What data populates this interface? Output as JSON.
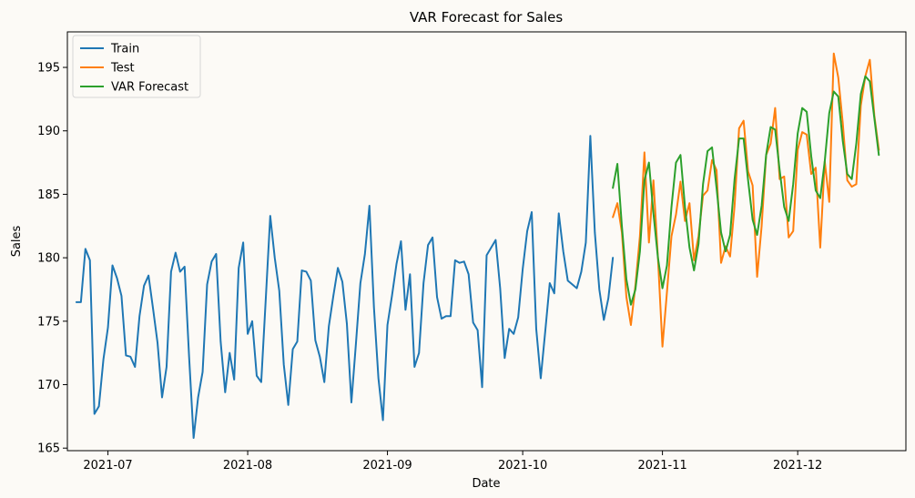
{
  "chart_data": {
    "type": "line",
    "title": "VAR Forecast for Sales",
    "xlabel": "Date",
    "ylabel": "Sales",
    "xlim": [
      "2021-06-22",
      "2021-12-25"
    ],
    "ylim": [
      164.8,
      197.8
    ],
    "x_ticks": [
      "2021-07-01",
      "2021-08-01",
      "2021-09-01",
      "2021-10-01",
      "2021-11-01",
      "2021-12-01"
    ],
    "x_tick_labels": [
      "2021-07",
      "2021-08",
      "2021-09",
      "2021-10",
      "2021-11",
      "2021-12"
    ],
    "y_ticks": [
      165,
      170,
      175,
      180,
      185,
      190,
      195
    ],
    "grid": false,
    "legend": "top-left",
    "series": [
      {
        "name": "Train",
        "color": "#1f77b4",
        "start": "2021-06-24",
        "values": [
          176.5,
          176.5,
          180.7,
          179.8,
          167.7,
          168.3,
          172.0,
          174.5,
          179.4,
          178.4,
          177.0,
          172.3,
          172.2,
          171.4,
          175.4,
          177.8,
          178.6,
          176.0,
          173.3,
          169.0,
          171.4,
          178.9,
          180.4,
          178.9,
          179.3,
          172.2,
          165.8,
          169.0,
          171.0,
          177.9,
          179.7,
          180.3,
          173.4,
          169.4,
          172.5,
          170.4,
          179.2,
          181.2,
          174.0,
          175.0,
          170.7,
          170.2,
          176.7,
          183.3,
          180.0,
          177.4,
          171.6,
          168.4,
          172.8,
          173.4,
          179.0,
          178.9,
          178.2,
          173.5,
          172.2,
          170.2,
          174.6,
          177.0,
          179.2,
          178.1,
          174.8,
          168.6,
          173.2,
          178.0,
          180.3,
          184.1,
          176.1,
          170.5,
          167.2,
          174.7,
          177.0,
          179.5,
          181.3,
          175.9,
          178.7,
          171.4,
          172.5,
          178.0,
          181.0,
          181.6,
          176.9,
          175.2,
          175.4,
          175.4,
          179.8,
          179.6,
          179.7,
          178.7,
          174.9,
          174.3,
          169.8,
          180.2,
          180.8,
          181.4,
          177.6,
          172.1,
          174.4,
          174.0,
          175.3,
          179.1,
          182.1,
          183.6,
          174.4,
          170.5,
          174.2,
          178.0,
          177.2,
          183.5,
          180.5,
          178.2,
          177.9,
          177.6,
          178.9,
          181.2,
          189.6,
          182.0,
          177.5,
          175.1,
          176.8,
          180.0
        ]
      },
      {
        "name": "Test",
        "color": "#ff7f0e",
        "start": "2021-10-21",
        "values": [
          183.2,
          184.3,
          182.0,
          176.9,
          174.7,
          177.8,
          181.7,
          188.3,
          181.2,
          186.1,
          180.0,
          173.0,
          177.3,
          181.7,
          183.4,
          186.0,
          182.9,
          184.3,
          179.8,
          181.7,
          184.9,
          185.3,
          187.7,
          186.9,
          179.6,
          180.9,
          180.1,
          184.1,
          190.2,
          190.8,
          186.8,
          185.7,
          178.5,
          182.5,
          188.1,
          189.0,
          191.8,
          186.2,
          186.4,
          181.6,
          182.1,
          188.5,
          189.9,
          189.7,
          186.6,
          187.1,
          180.8,
          187.6,
          184.4,
          196.1,
          194.2,
          190.6,
          186.1,
          185.6,
          185.8,
          192.0,
          194.3,
          195.6,
          191.2,
          188.5
        ]
      },
      {
        "name": "VAR Forecast",
        "color": "#2ca02c",
        "start": "2021-10-21",
        "values": [
          185.5,
          187.4,
          182.5,
          178.3,
          176.3,
          177.5,
          180.5,
          186.1,
          187.5,
          183.5,
          180.0,
          177.6,
          179.4,
          184.0,
          187.5,
          188.1,
          184.0,
          180.8,
          179.0,
          181.1,
          185.8,
          188.4,
          188.7,
          185.5,
          182.0,
          180.5,
          181.8,
          186.2,
          189.4,
          189.4,
          186.1,
          183.0,
          181.8,
          184.1,
          188.1,
          190.3,
          190.1,
          186.9,
          184.0,
          182.9,
          185.8,
          189.8,
          191.8,
          191.5,
          188.0,
          185.3,
          184.7,
          187.6,
          191.4,
          193.1,
          192.7,
          189.2,
          186.6,
          186.2,
          189.0,
          192.9,
          194.3,
          193.9,
          191.0,
          188.1
        ]
      }
    ]
  }
}
